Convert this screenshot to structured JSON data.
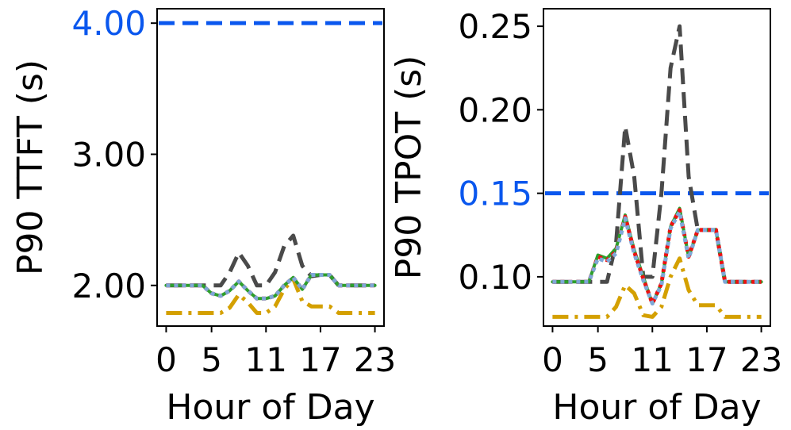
{
  "chart_data": [
    {
      "type": "line",
      "title": "",
      "xlabel": "Hour of Day",
      "ylabel": "P90 TTFT (s)",
      "xlim": [
        -1,
        24
      ],
      "ylim": [
        1.69,
        4.11
      ],
      "xticks": [
        0,
        5,
        11,
        17,
        23
      ],
      "xtick_labels": [
        "0",
        "5",
        "11",
        "17",
        "23"
      ],
      "yticks": [
        2.0,
        3.0,
        4.0
      ],
      "ytick_labels": [
        "2.00",
        "3.00",
        "4.00"
      ],
      "highlight_tick_label": "4.00",
      "grid": false,
      "x": [
        0,
        1,
        2,
        3,
        4,
        5,
        6,
        7,
        8,
        9,
        10,
        11,
        12,
        13,
        14,
        15,
        16,
        17,
        18,
        19,
        20,
        21,
        22,
        23
      ],
      "slo": {
        "value": 4.0,
        "color": "#0a57ee",
        "style": "dashed"
      },
      "series": [
        {
          "color": "#4a4a4a",
          "style": "dashed",
          "values": [
            2.0,
            2.0,
            2.0,
            2.0,
            2.0,
            2.0,
            2.0,
            2.1,
            2.25,
            2.15,
            2.0,
            2.0,
            2.1,
            2.3,
            2.38,
            2.15,
            2.07,
            2.08,
            2.08,
            2.0,
            2.0,
            2.0,
            2.0,
            2.0
          ]
        },
        {
          "color": "#d4a000",
          "style": "dashdot",
          "values": [
            1.79,
            1.79,
            1.79,
            1.79,
            1.79,
            1.79,
            1.79,
            1.83,
            1.93,
            1.87,
            1.79,
            1.79,
            1.84,
            1.97,
            2.05,
            1.88,
            1.84,
            1.84,
            1.84,
            1.79,
            1.79,
            1.79,
            1.79,
            1.79
          ]
        },
        {
          "color": "#2ca02c",
          "style": "solid",
          "values": [
            2.0,
            2.0,
            2.0,
            2.0,
            2.0,
            1.94,
            1.92,
            1.96,
            2.03,
            1.96,
            1.9,
            1.9,
            1.92,
            2.0,
            2.06,
            1.97,
            2.08,
            2.08,
            2.08,
            2.0,
            2.0,
            2.0,
            2.0,
            2.0
          ]
        },
        {
          "color": "#ee1111",
          "style": "dotted",
          "values": [
            2.0,
            2.0,
            2.0,
            2.0,
            2.0,
            1.94,
            1.92,
            1.96,
            2.03,
            1.96,
            1.9,
            1.9,
            1.92,
            2.0,
            2.06,
            1.97,
            2.08,
            2.08,
            2.08,
            2.0,
            2.0,
            2.0,
            2.0,
            2.0
          ]
        },
        {
          "color": "#7fa8d8",
          "style": "dotted",
          "values": [
            2.0,
            2.0,
            2.0,
            2.0,
            2.0,
            1.94,
            1.92,
            1.96,
            2.03,
            1.96,
            1.9,
            1.9,
            1.92,
            2.0,
            2.06,
            1.97,
            2.08,
            2.08,
            2.08,
            2.0,
            2.0,
            2.0,
            2.0,
            2.0
          ]
        }
      ]
    },
    {
      "type": "line",
      "title": "",
      "xlabel": "Hour of Day",
      "ylabel": "P90 TPOT (s)",
      "xlim": [
        -1,
        24
      ],
      "ylim": [
        0.0705,
        0.2605
      ],
      "xticks": [
        0,
        5,
        11,
        17,
        23
      ],
      "xtick_labels": [
        "0",
        "5",
        "11",
        "17",
        "23"
      ],
      "yticks": [
        0.1,
        0.15,
        0.2,
        0.25
      ],
      "ytick_labels": [
        "0.10",
        "0.15",
        "0.20",
        "0.25"
      ],
      "highlight_tick_label": "0.15",
      "grid": false,
      "x": [
        0,
        1,
        2,
        3,
        4,
        5,
        6,
        7,
        8,
        9,
        10,
        11,
        12,
        13,
        14,
        15,
        16,
        17,
        18,
        19,
        20,
        21,
        22,
        23
      ],
      "slo": {
        "value": 0.15,
        "color": "#0a57ee",
        "style": "dashed"
      },
      "series": [
        {
          "color": "#4a4a4a",
          "style": "dashed",
          "values": [
            0.097,
            0.097,
            0.097,
            0.097,
            0.097,
            0.097,
            0.097,
            0.12,
            0.19,
            0.16,
            0.1,
            0.1,
            0.15,
            0.225,
            0.25,
            0.16,
            0.128,
            0.128,
            0.128,
            0.097,
            0.097,
            0.097,
            0.097,
            0.097
          ]
        },
        {
          "color": "#d4a000",
          "style": "dashdot",
          "values": [
            0.076,
            0.076,
            0.076,
            0.076,
            0.076,
            0.076,
            0.076,
            0.082,
            0.095,
            0.09,
            0.077,
            0.076,
            0.082,
            0.1,
            0.111,
            0.092,
            0.083,
            0.083,
            0.083,
            0.076,
            0.076,
            0.076,
            0.076,
            0.076
          ]
        },
        {
          "color": "#2ca02c",
          "style": "solid",
          "values": [
            0.097,
            0.097,
            0.097,
            0.097,
            0.097,
            0.113,
            0.111,
            0.117,
            0.137,
            0.116,
            0.1,
            0.084,
            0.096,
            0.13,
            0.141,
            0.112,
            0.128,
            0.128,
            0.128,
            0.097,
            0.097,
            0.097,
            0.097,
            0.097
          ]
        },
        {
          "color": "#ee1111",
          "style": "dotted",
          "values": [
            0.097,
            0.097,
            0.097,
            0.097,
            0.097,
            0.112,
            0.11,
            0.115,
            0.136,
            0.115,
            0.099,
            0.084,
            0.096,
            0.13,
            0.14,
            0.112,
            0.128,
            0.128,
            0.128,
            0.097,
            0.097,
            0.097,
            0.097,
            0.097
          ]
        },
        {
          "color": "#7fa8d8",
          "style": "dotted",
          "values": [
            0.097,
            0.097,
            0.097,
            0.097,
            0.097,
            0.111,
            0.109,
            0.114,
            0.135,
            0.114,
            0.098,
            0.084,
            0.095,
            0.129,
            0.139,
            0.111,
            0.128,
            0.128,
            0.128,
            0.097,
            0.097,
            0.097,
            0.097,
            0.097
          ]
        }
      ]
    }
  ]
}
